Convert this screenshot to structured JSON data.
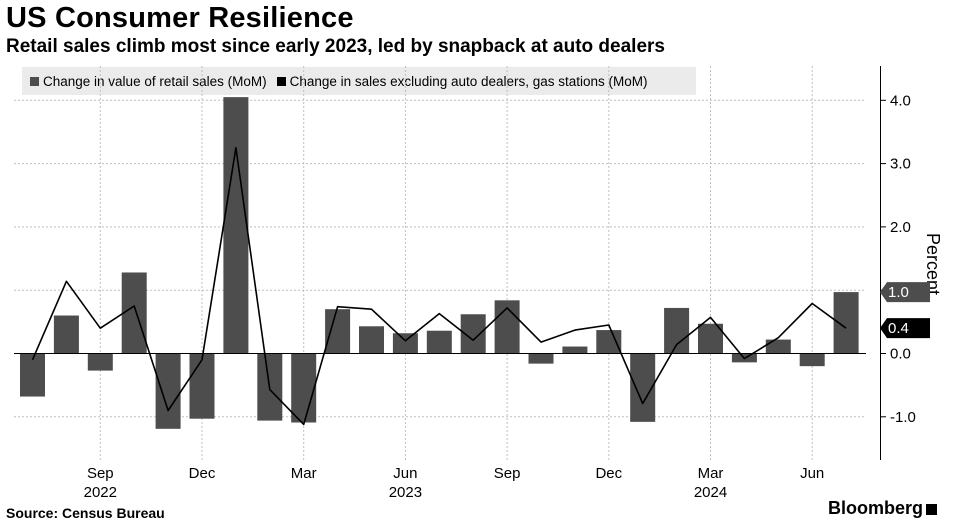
{
  "header": {
    "title": "US Consumer Resilience",
    "subtitle": "Retail sales climb most since early 2023, led by snapback at auto dealers"
  },
  "source": "Source: Census Bureau",
  "brand": "Bloomberg",
  "colors": {
    "bars": "#4d4d4d",
    "line": "#000000",
    "grid": "#bfbfbf"
  },
  "chart_data": {
    "type": "bar",
    "categories": [
      "2022-07",
      "2022-08",
      "2022-09",
      "2022-10",
      "2022-11",
      "2022-12",
      "2023-01",
      "2023-02",
      "2023-03",
      "2023-04",
      "2023-05",
      "2023-06",
      "2023-07",
      "2023-08",
      "2023-09",
      "2023-10",
      "2023-11",
      "2023-12",
      "2024-01",
      "2024-02",
      "2024-03",
      "2024-04",
      "2024-05",
      "2024-06",
      "2024-07"
    ],
    "series": [
      {
        "name": "Change in value of retail sales (MoM)",
        "type": "bar",
        "color": "#4d4d4d",
        "values": [
          -0.68,
          0.6,
          -0.27,
          1.28,
          -1.19,
          -1.03,
          4.05,
          -1.06,
          -1.09,
          0.7,
          0.43,
          0.32,
          0.36,
          0.62,
          0.84,
          -0.16,
          0.11,
          0.37,
          -1.08,
          0.72,
          0.47,
          -0.14,
          0.22,
          -0.2,
          0.97
        ]
      },
      {
        "name": "Change in sales excluding auto dealers, gas stations (MoM)",
        "type": "line",
        "color": "#000000",
        "values": [
          -0.1,
          1.14,
          0.4,
          0.75,
          -0.9,
          -0.1,
          3.25,
          -0.57,
          -1.12,
          0.74,
          0.7,
          0.2,
          0.63,
          0.21,
          0.72,
          0.18,
          0.37,
          0.45,
          -0.79,
          0.14,
          0.57,
          -0.08,
          0.25,
          0.79,
          0.4
        ]
      }
    ],
    "ylim": [
      -1.6,
      4.6
    ],
    "yticks": [
      -1.0,
      0.0,
      1.0,
      2.0,
      3.0,
      4.0
    ],
    "ytick_labels": [
      "-1.0",
      "0.0",
      "1.0",
      "2.0",
      "3.0",
      "4.0"
    ],
    "ylabel": "Percent",
    "xtick_labels": [
      {
        "index": 2,
        "label": "Sep"
      },
      {
        "index": 5,
        "label": "Dec"
      },
      {
        "index": 8,
        "label": "Mar"
      },
      {
        "index": 11,
        "label": "Jun"
      },
      {
        "index": 14,
        "label": "Sep"
      },
      {
        "index": 17,
        "label": "Dec"
      },
      {
        "index": 20,
        "label": "Mar"
      },
      {
        "index": 23,
        "label": "Jun"
      }
    ],
    "year_labels": [
      {
        "index": 2,
        "label": "2022"
      },
      {
        "index": 11,
        "label": "2023"
      },
      {
        "index": 20,
        "label": "2024"
      }
    ],
    "end_labels": [
      {
        "value": 0.97,
        "label": "1.0",
        "series": 0
      },
      {
        "value": 0.4,
        "label": "0.4",
        "series": 1
      }
    ],
    "grid": true,
    "legend_position": "top-left"
  }
}
